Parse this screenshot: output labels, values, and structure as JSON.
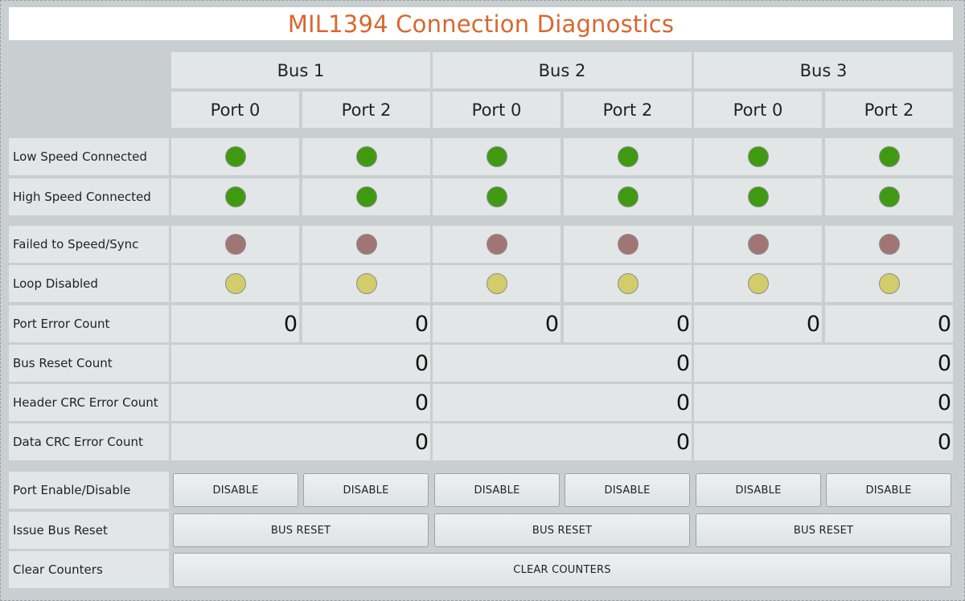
{
  "title": "MIL1394 Connection Diagnostics",
  "buses": [
    "Bus 1",
    "Bus 2",
    "Bus 3"
  ],
  "ports": [
    "Port 0",
    "Port 2",
    "Port 0",
    "Port 2",
    "Port 0",
    "Port 2"
  ],
  "rows": {
    "low_speed": {
      "label": "Low Speed Connected",
      "states": [
        "on",
        "on",
        "on",
        "on",
        "on",
        "on"
      ],
      "color": "#3f9a12"
    },
    "high_speed": {
      "label": "High Speed Connected",
      "states": [
        "on",
        "on",
        "on",
        "on",
        "on",
        "on"
      ],
      "color": "#3f9a12"
    },
    "failed_sync": {
      "label": "Failed to Speed/Sync",
      "states": [
        "off",
        "off",
        "off",
        "off",
        "off",
        "off"
      ],
      "color": "#a27575"
    },
    "loop_disabled": {
      "label": "Loop Disabled",
      "states": [
        "on",
        "on",
        "on",
        "on",
        "on",
        "on"
      ],
      "color": "#d3cc6a"
    },
    "port_error": {
      "label": "Port Error Count",
      "values": [
        "0",
        "0",
        "0",
        "0",
        "0",
        "0"
      ]
    },
    "bus_reset_count": {
      "label": "Bus Reset Count",
      "values": [
        "0",
        "0",
        "0"
      ]
    },
    "header_crc": {
      "label": "Header CRC Error Count",
      "values": [
        "0",
        "0",
        "0"
      ]
    },
    "data_crc": {
      "label": "Data CRC Error Count",
      "values": [
        "0",
        "0",
        "0"
      ]
    },
    "port_enable": {
      "label": "Port Enable/Disable",
      "buttons": [
        "DISABLE",
        "DISABLE",
        "DISABLE",
        "DISABLE",
        "DISABLE",
        "DISABLE"
      ]
    },
    "issue_reset": {
      "label": "Issue Bus Reset",
      "buttons": [
        "BUS RESET",
        "BUS RESET",
        "BUS RESET"
      ]
    },
    "clear_counters": {
      "label": "Clear Counters",
      "button": "CLEAR COUNTERS"
    }
  },
  "colors": {
    "title": "#d9672f",
    "background": "#c9ced0",
    "cell": "#e3e6e7"
  }
}
